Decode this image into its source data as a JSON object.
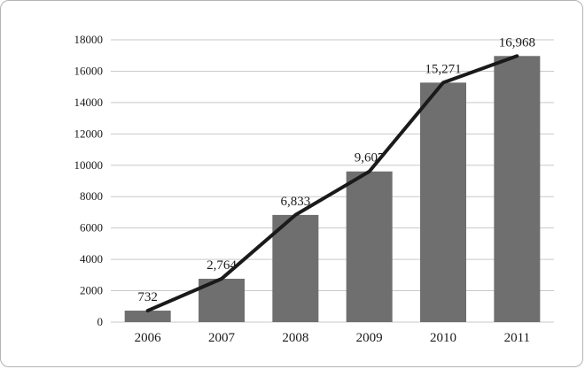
{
  "chart_data": {
    "type": "bar",
    "subtype": "bar-with-line-overlay",
    "title": "",
    "xlabel": "",
    "ylabel": "",
    "categories": [
      "2006",
      "2007",
      "2008",
      "2009",
      "2010",
      "2011"
    ],
    "values": [
      732,
      2764,
      6833,
      9607,
      15271,
      16968
    ],
    "value_labels": [
      "732",
      "2,764",
      "6,833",
      "9,607",
      "15,271",
      "16,968"
    ],
    "series": [
      {
        "name": "bars",
        "type": "bar",
        "values": [
          732,
          2764,
          6833,
          9607,
          15271,
          16968
        ]
      },
      {
        "name": "trend",
        "type": "line",
        "values": [
          732,
          2764,
          6833,
          9607,
          15271,
          16968
        ]
      }
    ],
    "ylim": [
      0,
      18000
    ],
    "ytick_step": 2000,
    "ytick_labels": [
      "0",
      "2000",
      "4000",
      "6000",
      "8000",
      "10000",
      "12000",
      "14000",
      "16000",
      "18000"
    ],
    "grid": true,
    "legend": "none",
    "colors": {
      "bar": "#6f6f6f",
      "line": "#1a1a1a",
      "grid": "#c9c9c9",
      "border": "#b3b3b3",
      "background": "#ffffff",
      "text": "#1a1a1a"
    }
  }
}
